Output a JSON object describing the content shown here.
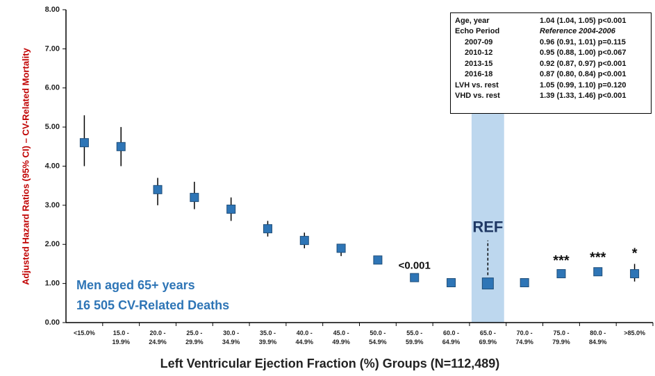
{
  "chart_data": {
    "type": "forest",
    "title_x": "Left Ventricular Ejection Fraction (%) Groups (N=112,489)",
    "title_y": "Adjusted Hazard Ratios (95% CI) – CV-Related Mortality",
    "categories": [
      "<15.0%",
      "15.0 - 19.9%",
      "20.0 - 24.9%",
      "25.0 - 29.9%",
      "30.0 - 34.9%",
      "35.0 - 39.9%",
      "40.0 - 44.9%",
      "45.0 - 49.9%",
      "50.0 - 54.9%",
      "55.0 - 59.9%",
      "60.0 - 64.9%",
      "65.0 - 69.9%",
      "70.0 - 74.9%",
      "75.0 - 79.9%",
      "80.0 - 84.9%",
      ">85.0%"
    ],
    "series": [
      {
        "color": "#2e75b6",
        "values": [
          4.6,
          4.5,
          3.4,
          3.2,
          2.9,
          2.4,
          2.1,
          1.9,
          1.6,
          1.15,
          1.02,
          1.0,
          1.02,
          1.25,
          1.3,
          1.25
        ],
        "lower": [
          4.0,
          4.0,
          3.0,
          2.9,
          2.6,
          2.2,
          1.9,
          1.7,
          1.55,
          1.1,
          0.98,
          null,
          0.97,
          1.18,
          1.2,
          1.05
        ],
        "upper": [
          5.3,
          5.0,
          3.7,
          3.6,
          3.2,
          2.6,
          2.3,
          2.0,
          1.65,
          1.2,
          1.06,
          null,
          1.07,
          1.32,
          1.4,
          1.5
        ]
      }
    ],
    "significance": [
      null,
      null,
      null,
      null,
      null,
      null,
      null,
      null,
      null,
      "<0.001",
      null,
      "REF",
      null,
      "***",
      "***",
      "*"
    ],
    "reference_band_color": "#bdd7ee",
    "ylim": [
      0,
      8
    ],
    "yticks": [
      {
        "value": 0,
        "label": "0.00"
      },
      {
        "value": 1,
        "label": "1.00"
      },
      {
        "value": 2,
        "label": "2.00"
      },
      {
        "value": 3,
        "label": "3.00"
      },
      {
        "value": 4,
        "label": "4.00"
      },
      {
        "value": 5,
        "label": "5.00"
      },
      {
        "value": 6,
        "label": "6.00"
      },
      {
        "value": 7,
        "label": "7.00"
      },
      {
        "value": 8,
        "label": "8.00"
      }
    ],
    "cohort_note": [
      "Men aged 65+ years",
      "16 505 CV-Related Deaths"
    ],
    "covariates": [
      [
        "Age, year",
        "1.04 (1.04, 1.05) p<0.001"
      ],
      [
        "Echo Period",
        "Reference 2004-2006"
      ],
      [
        "2007-09",
        "0.96 (0.91, 1.01) p=0.115"
      ],
      [
        "2010-12",
        "0.95 (0.88, 1.00) p<0.067"
      ],
      [
        "2013-15",
        "0.92 (0.87, 0.97) p<0.001"
      ],
      [
        "2016-18",
        "0.87 (0.80, 0.84) p<0.001"
      ],
      [
        "LVH vs. rest",
        "1.05 (0.99, 1.10) p=0.120"
      ],
      [
        "VHD vs. rest",
        "1.39 (1.33, 1.46) p<0.001"
      ]
    ]
  }
}
